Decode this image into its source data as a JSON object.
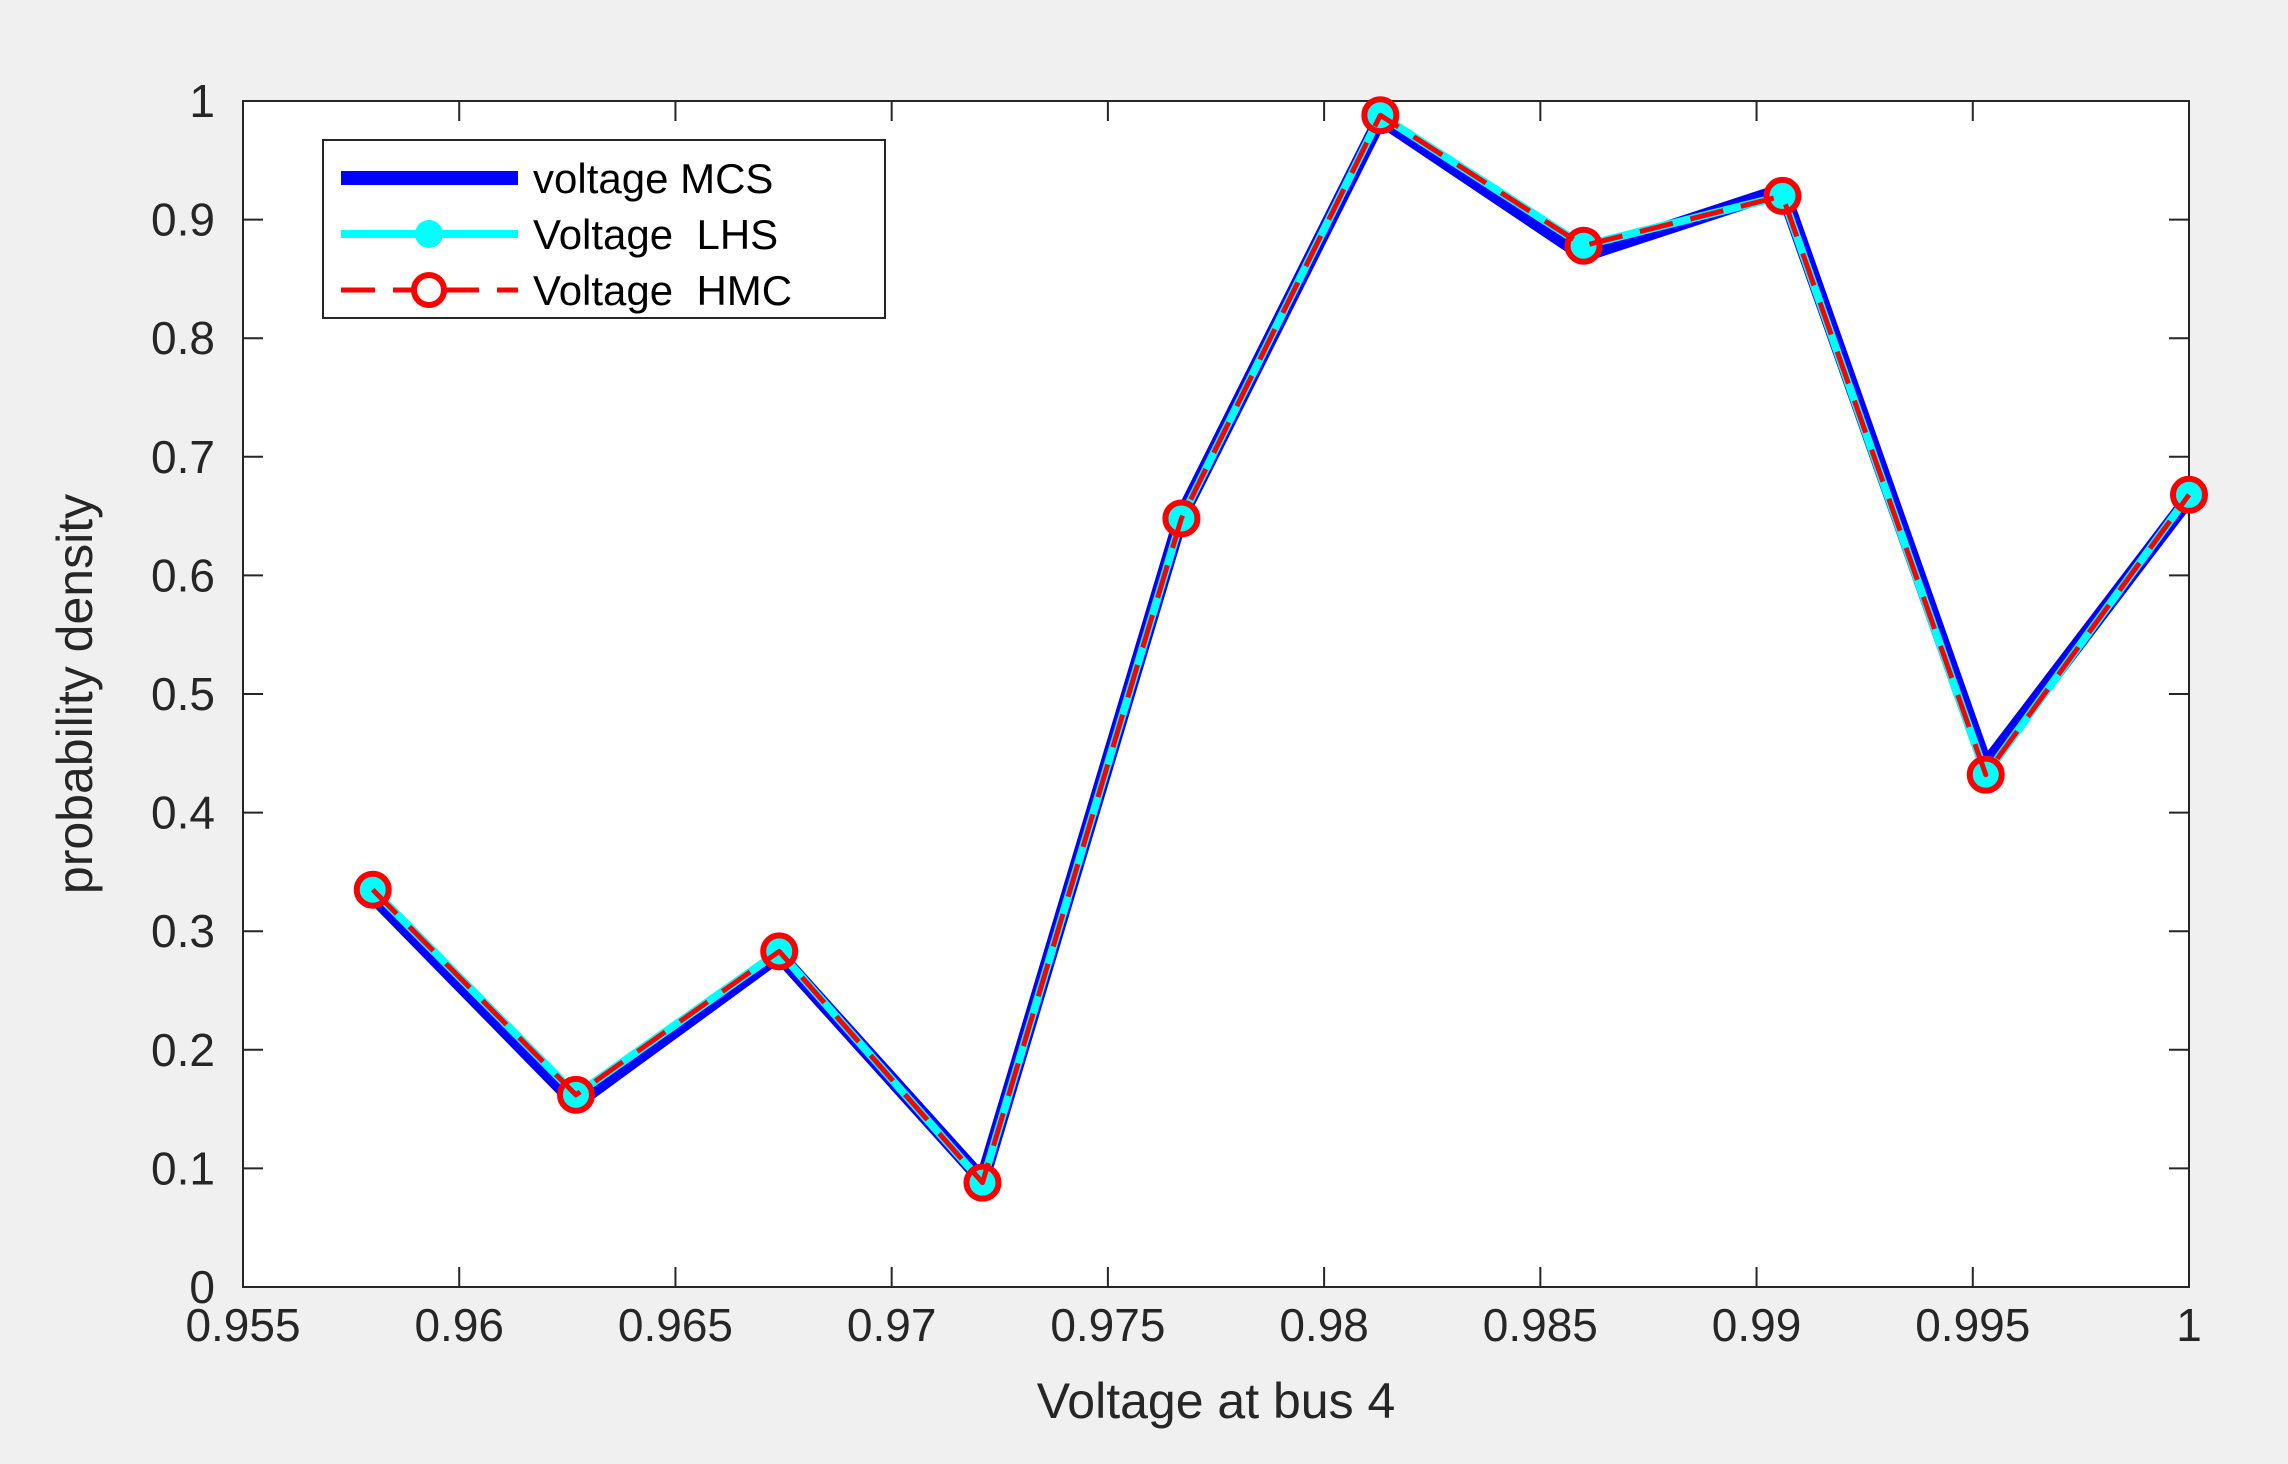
{
  "chart_data": {
    "type": "line",
    "title": "",
    "xlabel": "Voltage at bus 4",
    "ylabel": "probability density",
    "xlim": [
      0.955,
      1.0
    ],
    "ylim": [
      0,
      1
    ],
    "xticks": [
      0.955,
      0.96,
      0.965,
      0.97,
      0.975,
      0.98,
      0.985,
      0.99,
      0.995,
      1.0
    ],
    "xtick_labels": [
      "0.955",
      "0.96",
      "0.965",
      "0.97",
      "0.975",
      "0.98",
      "0.985",
      "0.99",
      "0.995",
      "1"
    ],
    "yticks": [
      0,
      0.1,
      0.2,
      0.3,
      0.4,
      0.5,
      0.6,
      0.7,
      0.8,
      0.9,
      1.0
    ],
    "ytick_labels": [
      "0",
      "0.1",
      "0.2",
      "0.3",
      "0.4",
      "0.5",
      "0.6",
      "0.7",
      "0.8",
      "0.9",
      "1"
    ],
    "grid": false,
    "legend_position": "top-left",
    "x": [
      0.958,
      0.9627,
      0.9674,
      0.9721,
      0.9767,
      0.9813,
      0.986,
      0.9906,
      0.9953,
      1.0
    ],
    "series": [
      {
        "name": "voltage MCS",
        "color": "#0000ff",
        "style": "solid",
        "marker": "none",
        "values": [
          0.33,
          0.155,
          0.28,
          0.09,
          0.65,
          0.985,
          0.87,
          0.925,
          0.44,
          0.665
        ]
      },
      {
        "name": "Voltage  LHS",
        "color": "#00ffff",
        "style": "solid",
        "marker": "filled-circle",
        "values": [
          0.335,
          0.162,
          0.283,
          0.088,
          0.648,
          0.988,
          0.878,
          0.92,
          0.432,
          0.668
        ]
      },
      {
        "name": "Voltage  HMC",
        "color": "#ff0000",
        "style": "dashed",
        "marker": "open-circle",
        "values": [
          0.335,
          0.162,
          0.283,
          0.088,
          0.648,
          0.988,
          0.878,
          0.92,
          0.432,
          0.668
        ]
      }
    ]
  }
}
